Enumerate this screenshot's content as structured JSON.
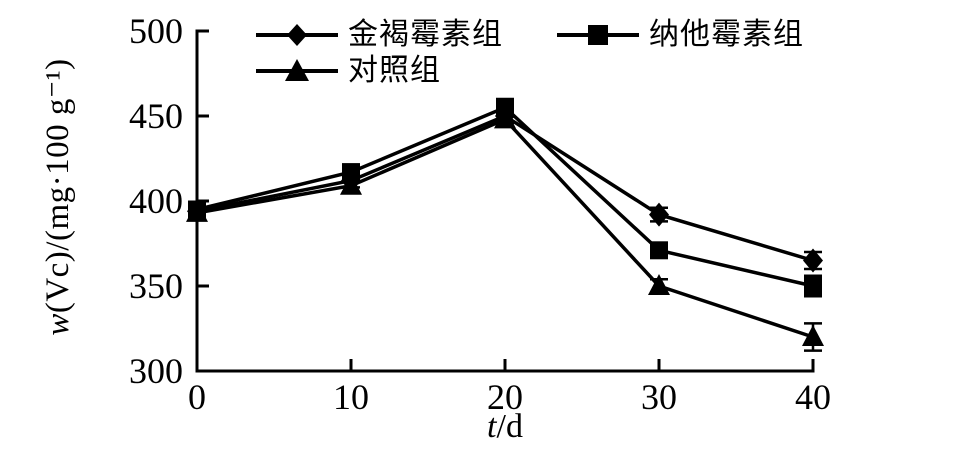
{
  "figure": {
    "background": "#ffffff",
    "ink_color": "#000000"
  },
  "chart_data": {
    "type": "line",
    "x": [
      0,
      10,
      20,
      30,
      40
    ],
    "xlabel": "t/d",
    "ylabel": "w(Vc)/(mg·100 g⁻¹)",
    "xlabel_parts": {
      "italic": "t",
      "rest": "/d"
    },
    "ylabel_parts": {
      "italic": "w",
      "rest": "(Vc)/(mg·100 g⁻¹)"
    },
    "xlim": [
      0,
      40
    ],
    "ylim": [
      300,
      500
    ],
    "xticks": [
      0,
      10,
      20,
      30,
      40
    ],
    "yticks": [
      300,
      350,
      400,
      450,
      500
    ],
    "grid": false,
    "legend_position": "top",
    "error_bars": true,
    "series": [
      {
        "name": "金褐霉素组",
        "marker": "diamond",
        "values": [
          394,
          412,
          450,
          392,
          365
        ],
        "errors": [
          3,
          4,
          4,
          4,
          5
        ]
      },
      {
        "name": "纳他霉素组",
        "marker": "square",
        "values": [
          395,
          417,
          455,
          371,
          350
        ],
        "errors": [
          3,
          4,
          5,
          3,
          6
        ]
      },
      {
        "name": "对照组",
        "marker": "triangle",
        "values": [
          393,
          409,
          448,
          350,
          320
        ],
        "errors": [
          3,
          4,
          4,
          4,
          8
        ]
      }
    ]
  }
}
